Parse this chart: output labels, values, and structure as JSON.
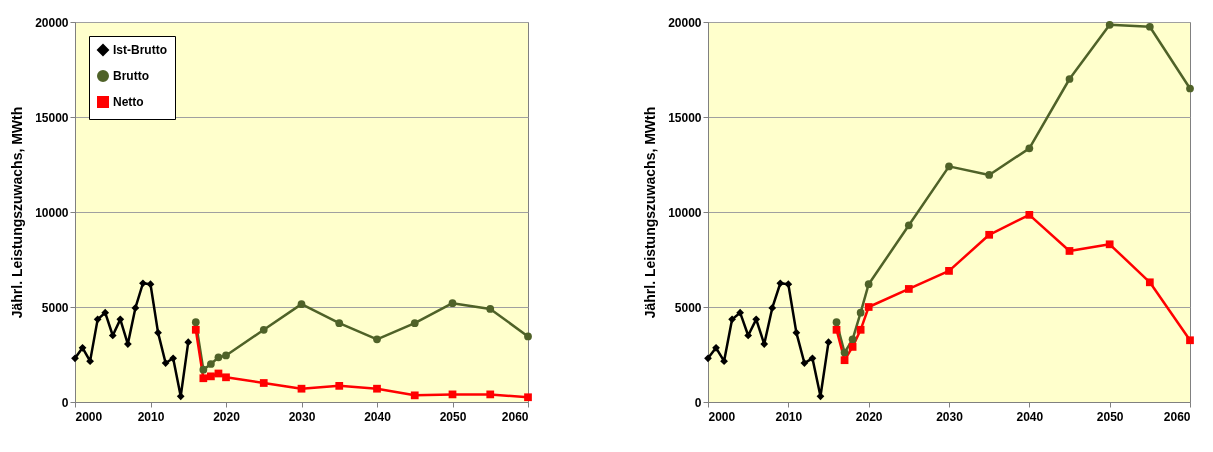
{
  "chart_data": [
    {
      "type": "line",
      "ylabel": "Jährl. Leistungszuwachs, MWth",
      "xlim": [
        2000,
        2060
      ],
      "xticks": [
        2000,
        2010,
        2020,
        2030,
        2040,
        2050,
        2060
      ],
      "ylim": [
        0,
        20000
      ],
      "yticks": [
        0,
        5000,
        10000,
        15000,
        20000
      ],
      "grid": "y",
      "legend": "top left",
      "line_style": "solid",
      "series": [
        {
          "name": "Ist-Brutto",
          "color": "#000000",
          "marker": "diamond",
          "x": [
            2000,
            2001,
            2002,
            2003,
            2004,
            2005,
            2006,
            2007,
            2008,
            2009,
            2010,
            2011,
            2012,
            2013,
            2014,
            2015
          ],
          "values": [
            2300,
            2850,
            2150,
            4350,
            4700,
            3500,
            4350,
            3050,
            4950,
            6250,
            6200,
            3650,
            2050,
            2300,
            300,
            3150
          ]
        },
        {
          "name": "Brutto",
          "color": "#4f6228",
          "marker": "circle",
          "x": [
            2016,
            2017,
            2018,
            2019,
            2020,
            2025,
            2030,
            2035,
            2040,
            2045,
            2050,
            2055,
            2060
          ],
          "values": [
            4200,
            1700,
            2000,
            2350,
            2450,
            3800,
            5150,
            4150,
            3300,
            4150,
            5200,
            4900,
            3450
          ]
        },
        {
          "name": "Netto",
          "color": "#ff0000",
          "marker": "square",
          "x": [
            2016,
            2017,
            2018,
            2019,
            2020,
            2025,
            2030,
            2035,
            2040,
            2045,
            2050,
            2055,
            2060
          ],
          "values": [
            3800,
            1250,
            1350,
            1500,
            1300,
            1000,
            700,
            850,
            700,
            350,
            400,
            400,
            250
          ]
        }
      ]
    },
    {
      "type": "line",
      "ylabel": "Jährl. Leistungszuwachs, MWth",
      "xlim": [
        2000,
        2060
      ],
      "xticks": [
        2000,
        2010,
        2020,
        2030,
        2040,
        2050,
        2060
      ],
      "ylim": [
        0,
        20000
      ],
      "yticks": [
        0,
        5000,
        10000,
        15000,
        20000
      ],
      "grid": "y",
      "legend": "top left",
      "line_style": "solid",
      "series": [
        {
          "name": "Ist-Brutto",
          "color": "#000000",
          "marker": "diamond",
          "x": [
            2000,
            2001,
            2002,
            2003,
            2004,
            2005,
            2006,
            2007,
            2008,
            2009,
            2010,
            2011,
            2012,
            2013,
            2014,
            2015
          ],
          "values": [
            2300,
            2850,
            2150,
            4350,
            4700,
            3500,
            4350,
            3050,
            4950,
            6250,
            6200,
            3650,
            2050,
            2300,
            300,
            3150
          ]
        },
        {
          "name": "Brutto",
          "color": "#4f6228",
          "marker": "circle",
          "x": [
            2016,
            2017,
            2018,
            2019,
            2020,
            2025,
            2030,
            2035,
            2040,
            2045,
            2050,
            2055,
            2060
          ],
          "values": [
            4200,
            2600,
            3300,
            4700,
            6200,
            9300,
            12400,
            11950,
            13350,
            17000,
            19850,
            19750,
            16500
          ]
        },
        {
          "name": "Netto",
          "color": "#ff0000",
          "marker": "square",
          "x": [
            2016,
            2017,
            2018,
            2019,
            2020,
            2025,
            2030,
            2035,
            2040,
            2045,
            2050,
            2055,
            2060
          ],
          "values": [
            3800,
            2200,
            2900,
            3800,
            5000,
            5950,
            6900,
            8800,
            9850,
            7950,
            8300,
            6300,
            3250
          ]
        }
      ]
    }
  ]
}
